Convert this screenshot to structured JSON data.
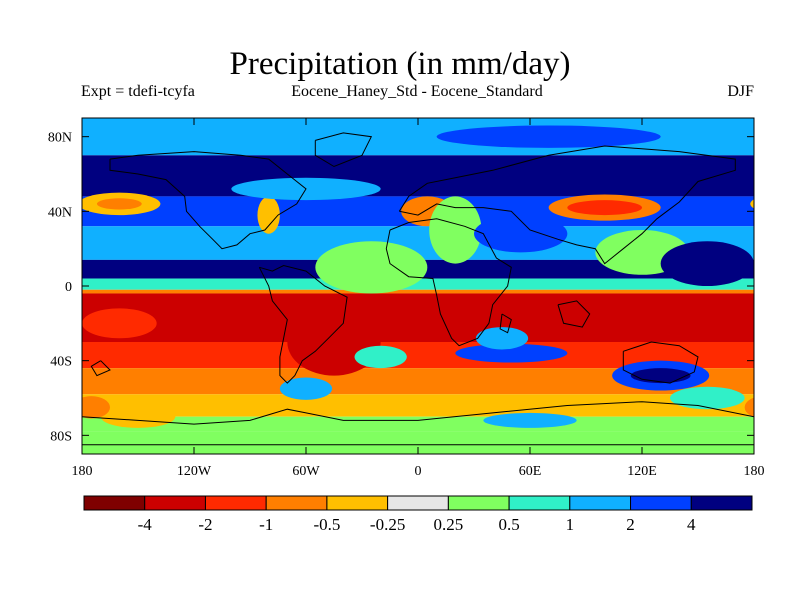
{
  "title": "Precipitation (in mm/day)",
  "left_string": "Expt = tdefi-tcyfa",
  "center_string": "Eocene_Haney_Std - Eocene_Standard",
  "right_string": "DJF",
  "chart_data": {
    "type": "heatmap",
    "title": "Precipitation (in mm/day)",
    "subtitle_left": "Expt = tdefi-tcyfa",
    "subtitle_center": "Eocene_Haney_Std - Eocene_Standard",
    "subtitle_right": "DJF",
    "xlabel": "",
    "ylabel": "",
    "xlim": [
      -180,
      180
    ],
    "ylim": [
      -90,
      90
    ],
    "x_ticks": [
      {
        "value": -180,
        "label": "180"
      },
      {
        "value": -120,
        "label": "120W"
      },
      {
        "value": -60,
        "label": "60W"
      },
      {
        "value": 0,
        "label": "0"
      },
      {
        "value": 60,
        "label": "60E"
      },
      {
        "value": 120,
        "label": "120E"
      },
      {
        "value": 180,
        "label": "180"
      }
    ],
    "y_ticks": [
      {
        "value": 80,
        "label": "80N"
      },
      {
        "value": 40,
        "label": "40N"
      },
      {
        "value": 0,
        "label": "0"
      },
      {
        "value": -40,
        "label": "40S"
      },
      {
        "value": -80,
        "label": "80S"
      }
    ],
    "colorbar": {
      "levels": [
        -4,
        -2,
        -1,
        -0.5,
        -0.25,
        0.25,
        0.5,
        1,
        2,
        4
      ],
      "level_labels": [
        "-4",
        "-2",
        "-1",
        "-0.5",
        "-0.25",
        "0.25",
        "0.5",
        "1",
        "2",
        "4"
      ],
      "colors": [
        "#7f0000",
        "#cc0000",
        "#ff2a00",
        "#ff7f00",
        "#ffbf00",
        "#e6e6e6",
        "#80ff60",
        "#30f0c8",
        "#10b0ff",
        "#0040ff",
        "#000080"
      ]
    },
    "bands": [
      {
        "lat": [
          70,
          90
        ],
        "value": 1
      },
      {
        "lat": [
          48,
          70
        ],
        "value": 4
      },
      {
        "lat": [
          32,
          48
        ],
        "value": 2
      },
      {
        "lat": [
          14,
          32
        ],
        "value": 1
      },
      {
        "lat": [
          4,
          14
        ],
        "value": 4
      },
      {
        "lat": [
          -2,
          4
        ],
        "value": 0.5
      },
      {
        "lat": [
          -4,
          -2
        ],
        "value": -1
      },
      {
        "lat": [
          -30,
          -4
        ],
        "value": -4
      },
      {
        "lat": [
          -44,
          -30
        ],
        "value": -2
      },
      {
        "lat": [
          -58,
          -44
        ],
        "value": -1
      },
      {
        "lat": [
          -70,
          -58
        ],
        "value": -0.5
      },
      {
        "lat": [
          -78,
          -70
        ],
        "value": 0.25
      },
      {
        "lat": [
          -90,
          -78
        ],
        "value": 0.25
      }
    ],
    "patches": [
      {
        "lon": -160,
        "lat": 44,
        "rlon": 22,
        "rlat": 6,
        "value": -0.5
      },
      {
        "lon": -160,
        "lat": 44,
        "rlon": 12,
        "rlat": 3,
        "value": -1
      },
      {
        "lon": -80,
        "lat": 38,
        "rlon": 6,
        "rlat": 10,
        "value": -0.5
      },
      {
        "lon": -60,
        "lat": 52,
        "rlon": 40,
        "rlat": 6,
        "value": 1
      },
      {
        "lon": -25,
        "lat": 10,
        "rlon": 30,
        "rlat": 14,
        "value": 0.25
      },
      {
        "lon": 5,
        "lat": 40,
        "rlon": 14,
        "rlat": 8,
        "value": -1
      },
      {
        "lon": 20,
        "lat": 30,
        "rlon": 14,
        "rlat": 18,
        "value": 0.25
      },
      {
        "lon": 100,
        "lat": 42,
        "rlon": 30,
        "rlat": 7,
        "value": -1
      },
      {
        "lon": 100,
        "lat": 42,
        "rlon": 20,
        "rlat": 4,
        "value": -2
      },
      {
        "lon": 120,
        "lat": 18,
        "rlon": 25,
        "rlat": 12,
        "value": 0.25
      },
      {
        "lon": 55,
        "lat": 28,
        "rlon": 25,
        "rlat": 10,
        "value": 2
      },
      {
        "lon": 155,
        "lat": 12,
        "rlon": 25,
        "rlat": 12,
        "value": 4
      },
      {
        "lon": -45,
        "lat": -30,
        "rlon": 25,
        "rlat": 18,
        "value": -4
      },
      {
        "lon": -20,
        "lat": -38,
        "rlon": 14,
        "rlat": 6,
        "value": 0.5
      },
      {
        "lon": 50,
        "lat": -36,
        "rlon": 30,
        "rlat": 5,
        "value": 2
      },
      {
        "lon": 45,
        "lat": -28,
        "rlon": 14,
        "rlat": 6,
        "value": 1
      },
      {
        "lon": 130,
        "lat": -48,
        "rlon": 26,
        "rlat": 8,
        "value": 2
      },
      {
        "lon": 130,
        "lat": -48,
        "rlon": 16,
        "rlat": 4,
        "value": 4
      },
      {
        "lon": 155,
        "lat": -60,
        "rlon": 20,
        "rlat": 6,
        "value": 0.5
      },
      {
        "lon": -60,
        "lat": -55,
        "rlon": 14,
        "rlat": 6,
        "value": 1
      },
      {
        "lon": -150,
        "lat": -70,
        "rlon": 20,
        "rlat": 6,
        "value": -0.5
      },
      {
        "lon": -175,
        "lat": -65,
        "rlon": 10,
        "rlat": 6,
        "value": -1
      },
      {
        "lon": 60,
        "lat": -72,
        "rlon": 25,
        "rlat": 4,
        "value": 1
      },
      {
        "lon": -160,
        "lat": -20,
        "rlon": 20,
        "rlat": 8,
        "value": -2
      },
      {
        "lon": 70,
        "lat": 80,
        "rlon": 60,
        "rlat": 6,
        "value": 2
      }
    ]
  }
}
